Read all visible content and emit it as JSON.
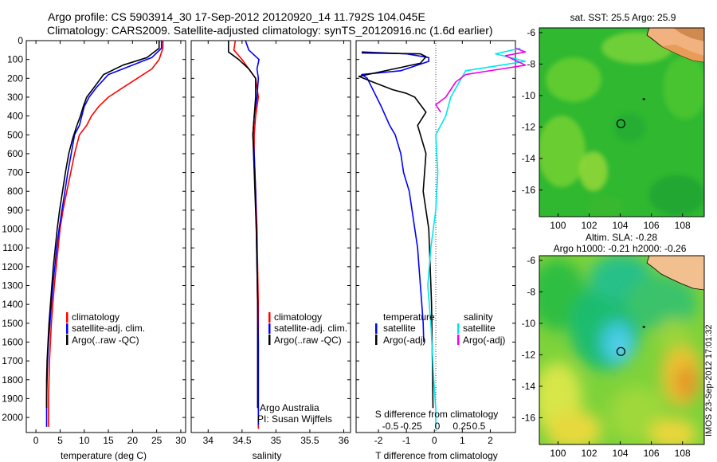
{
  "title": {
    "line1": "Argo profile: CS 5903914_30 17-Sep-2012 20120920_14 11.792S 104.045E",
    "line2": "Climatology: CARS2009. Satellite-adjusted climatology: synTS_20120916.nc (1.6d earlier)"
  },
  "colors": {
    "climatology": "#ff0000",
    "satellite": "#0000ff",
    "argo": "#000000",
    "satellite_salinity": "#00e5ee",
    "argo_salinity": "#ee00ee"
  },
  "credit": "Argo Australia",
  "pi": "PI: Susan Wijffels",
  "timestamp": "IMOS 23-Sep-2012 17:01:32",
  "chart_data": [
    {
      "type": "line",
      "id": "temperature",
      "xlabel": "temperature (deg C)",
      "ylabel": "",
      "xlim": [
        -2,
        31
      ],
      "ylim": [
        2080,
        0
      ],
      "xticks": [
        0,
        5,
        10,
        15,
        20,
        25,
        30
      ],
      "yticks": [
        0,
        100,
        200,
        300,
        400,
        500,
        600,
        700,
        800,
        900,
        1000,
        1100,
        1200,
        1300,
        1400,
        1500,
        1600,
        1700,
        1800,
        1900,
        2000
      ],
      "legend": [
        "climatology",
        "satellite-adj. clim.",
        "Argo(..raw -QC)"
      ],
      "series": [
        {
          "name": "climatology",
          "x": [
            26.3,
            26.3,
            25.5,
            24,
            21,
            18,
            15,
            13,
            11.5,
            10.5,
            9,
            8,
            7.2,
            6.4,
            5.6,
            5,
            4.6,
            4.2,
            3.8,
            3.5,
            3.2,
            3,
            2.8,
            2.7,
            2.6,
            2.6
          ],
          "y": [
            0,
            40,
            100,
            150,
            200,
            250,
            300,
            350,
            400,
            450,
            500,
            600,
            700,
            800,
            900,
            1000,
            1100,
            1200,
            1300,
            1400,
            1500,
            1600,
            1700,
            1800,
            1900,
            2050
          ]
        },
        {
          "name": "satellite-adj. clim.",
          "x": [
            26,
            26,
            24,
            20,
            15,
            12.5,
            11,
            10,
            9.5,
            9,
            8,
            7.3,
            6.6,
            6,
            5.4,
            4.8,
            4.3,
            3.9,
            3.5,
            3.2,
            2.9,
            2.6,
            2.4,
            2.3,
            2.2,
            2.2
          ],
          "y": [
            0,
            40,
            90,
            130,
            180,
            250,
            300,
            350,
            400,
            450,
            500,
            600,
            700,
            800,
            900,
            1000,
            1100,
            1200,
            1300,
            1400,
            1500,
            1600,
            1700,
            1800,
            1900,
            2050
          ]
        },
        {
          "name": "Argo(..raw -QC)",
          "x": [
            25.5,
            25.5,
            23,
            18,
            14,
            12,
            10.5,
            9.8,
            9.2,
            8.5,
            7.6,
            6.8,
            6.1,
            5.5,
            4.9,
            4.4,
            4,
            3.6,
            3.3,
            3,
            2.7,
            2.5,
            2.3,
            2.2,
            2.2
          ],
          "y": [
            0,
            40,
            90,
            130,
            180,
            250,
            300,
            350,
            400,
            450,
            520,
            600,
            700,
            800,
            900,
            1000,
            1100,
            1200,
            1300,
            1400,
            1500,
            1600,
            1700,
            1800,
            1950
          ]
        }
      ]
    },
    {
      "type": "line",
      "id": "salinity",
      "xlabel": "salinity",
      "xlim": [
        33.75,
        36.1
      ],
      "ylim": [
        2080,
        0
      ],
      "xticks": [
        34,
        34.5,
        35,
        35.5,
        36
      ],
      "legend": [
        "climatology",
        "satellite-adj. clim.",
        "Argo(..raw -QC)"
      ],
      "series": [
        {
          "name": "climatology",
          "x": [
            34.4,
            34.38,
            34.5,
            34.6,
            34.7,
            34.74,
            34.7,
            34.68,
            34.68,
            34.7,
            34.72,
            34.73,
            34.74,
            34.74,
            34.74,
            34.74
          ],
          "y": [
            0,
            50,
            100,
            150,
            200,
            300,
            400,
            500,
            600,
            800,
            1000,
            1200,
            1400,
            1600,
            1800,
            2060
          ]
        },
        {
          "name": "satellite-adj. clim.",
          "x": [
            34.55,
            34.6,
            34.75,
            34.72,
            34.74,
            34.72,
            34.68,
            34.66,
            34.68,
            34.7,
            34.71,
            34.72,
            34.73,
            34.74,
            34.74,
            34.74
          ],
          "y": [
            0,
            50,
            100,
            150,
            200,
            300,
            400,
            500,
            600,
            800,
            1000,
            1200,
            1400,
            1600,
            1800,
            2040
          ]
        },
        {
          "name": "Argo(..raw -QC)",
          "x": [
            34.3,
            34.3,
            34.45,
            34.6,
            34.7,
            34.7,
            34.68,
            34.66,
            34.67,
            34.69,
            34.71,
            34.72,
            34.73,
            34.73,
            34.73
          ],
          "y": [
            0,
            60,
            100,
            150,
            200,
            300,
            400,
            500,
            600,
            800,
            1000,
            1200,
            1400,
            1600,
            1950
          ]
        }
      ]
    },
    {
      "type": "line",
      "id": "differences",
      "xlabel": "T difference from climatology",
      "xlabel_top": "S difference from climatology",
      "x_top_ticks": [
        "-0.5",
        "-0.25",
        "0",
        "0.25",
        "0.5"
      ],
      "xlim": [
        -2.8,
        2.9
      ],
      "ylim": [
        2080,
        0
      ],
      "xticks": [
        -2,
        -1,
        0,
        1,
        2
      ],
      "legend_temperature": [
        "temperature",
        "satellite",
        "Argo(-adj)"
      ],
      "legend_salinity": [
        "salinity",
        "satellite",
        "Argo(-adj)"
      ],
      "series": [
        {
          "name": "satellite",
          "group": "temperature",
          "x": [
            -2.6,
            -1,
            -0.2,
            -0.2,
            -1.2,
            -2.6,
            -2.4,
            -1.9,
            -1.6,
            -1.4,
            -1.2,
            -1.1,
            -0.9,
            -0.8,
            -0.7,
            -0.6,
            -0.55,
            -0.5,
            -0.45,
            -0.4,
            -0.38
          ],
          "y": [
            60,
            70,
            90,
            110,
            160,
            180,
            200,
            350,
            450,
            500,
            600,
            700,
            800,
            900,
            1000,
            1100,
            1200,
            1300,
            1400,
            1500,
            1600
          ]
        },
        {
          "name": "Argo(-adj)",
          "group": "temperature",
          "x": [
            -2.6,
            -0.5,
            -0.3,
            -0.5,
            -2.7,
            -2.2,
            -1.5,
            -1.0,
            -0.7,
            -0.3,
            -0.6,
            -0.3,
            -0.4,
            -0.2,
            -0.15,
            -0.1,
            -0.08,
            -0.06,
            -0.05
          ],
          "y": [
            65,
            70,
            85,
            120,
            190,
            220,
            260,
            280,
            300,
            380,
            450,
            600,
            800,
            1000,
            1200,
            1400,
            1600,
            1800,
            1950
          ]
        },
        {
          "name": "satellite",
          "group": "salinity",
          "x": [
            0.85,
            0.6,
            0.9,
            0.3,
            0.15,
            0.1,
            0.0,
            0.02,
            0.0,
            -0.05,
            -0.08,
            -0.05,
            -0.03,
            -0.02,
            0.0,
            0.0
          ],
          "y": [
            40,
            70,
            110,
            160,
            300,
            400,
            500,
            700,
            900,
            1100,
            1300,
            1500,
            1700,
            1800,
            1950,
            2060
          ]
        },
        {
          "name": "Argo(-adj)",
          "group": "salinity",
          "x": [
            0.8,
            0.9,
            0.7,
            0.9,
            0.3,
            0.2,
            0.1,
            0.0,
            0.05
          ],
          "y": [
            40,
            60,
            80,
            130,
            180,
            220,
            300,
            340,
            380
          ]
        }
      ]
    },
    {
      "type": "heatmap",
      "id": "sst_map",
      "title": "sat. SST: 25.5 Argo: 25.9",
      "xlim": [
        98.8,
        109.4
      ],
      "ylim": [
        -17.7,
        -5.7
      ],
      "xticks": [
        100,
        102,
        104,
        106,
        108
      ],
      "yticks": [
        -6,
        -8,
        -10,
        -12,
        -14,
        -16
      ],
      "argo_position": [
        104.045,
        -11.792
      ]
    },
    {
      "type": "heatmap",
      "id": "sla_map",
      "title": "Altim. SLA: -0.28",
      "subtitle": "Argo h1000: -0.21 h2000: -0.26",
      "xlim": [
        98.8,
        109.4
      ],
      "ylim": [
        -17.7,
        -5.7
      ],
      "xticks": [
        100,
        102,
        104,
        106,
        108
      ],
      "yticks": [
        -6,
        -8,
        -10,
        -12,
        -14,
        -16
      ],
      "argo_position": [
        104.045,
        -11.792
      ]
    }
  ]
}
